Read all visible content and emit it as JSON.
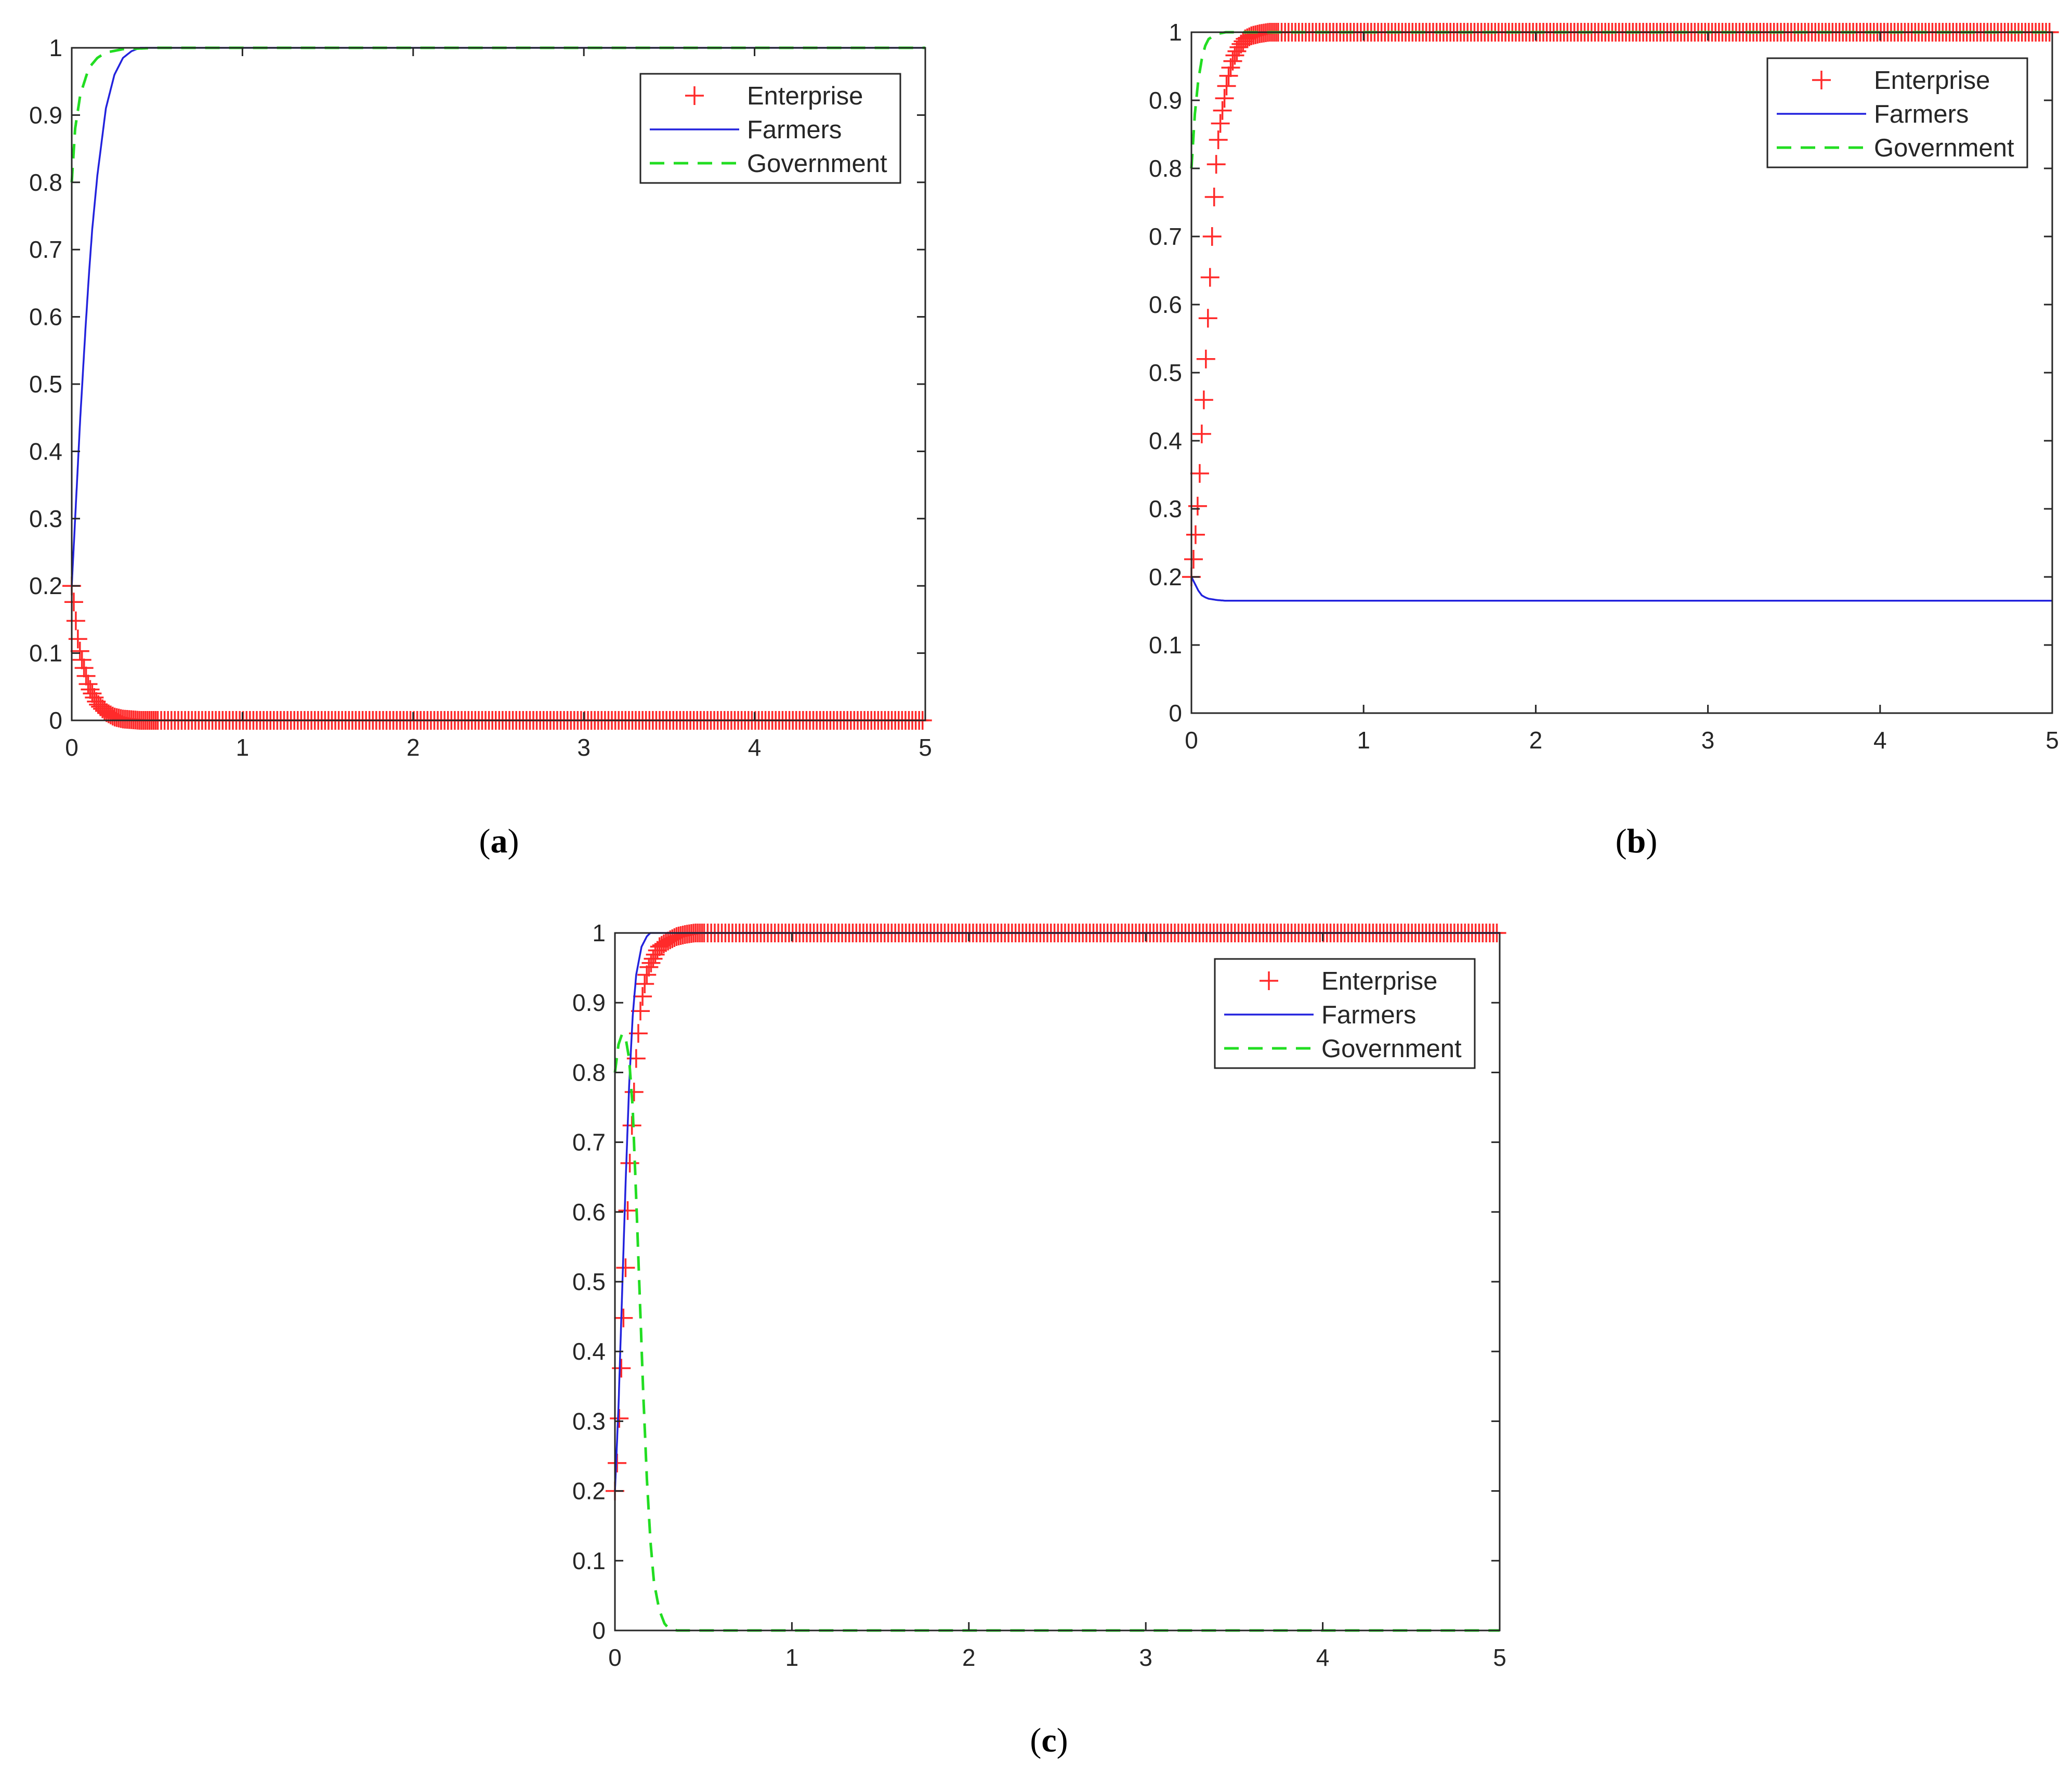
{
  "colors": {
    "enterprise": "#ff2a2a",
    "farmers": "#2222dd",
    "government": "#22dd22",
    "axis": "#262626"
  },
  "legend": {
    "enterprise": "Enterprise",
    "farmers": "Farmers",
    "government": "Government"
  },
  "panel_labels": [
    "a",
    "b",
    "c"
  ],
  "chart_data": [
    {
      "type": "line",
      "panel": "a",
      "xlim": [
        0,
        5
      ],
      "ylim": [
        0,
        1
      ],
      "xticks": [
        "0",
        "1",
        "2",
        "3",
        "4",
        "5"
      ],
      "yticks": [
        "0",
        "0.1",
        "0.2",
        "0.3",
        "0.4",
        "0.5",
        "0.6",
        "0.7",
        "0.8",
        "0.9",
        "1"
      ],
      "legend_position": "top-right",
      "grid": false,
      "series": [
        {
          "name": "Enterprise",
          "style": "markers-plus",
          "x": [
            0,
            0.01,
            0.02,
            0.03,
            0.05,
            0.08,
            0.1,
            0.12,
            0.15,
            0.2,
            0.25,
            0.3,
            0.4,
            0.5,
            1,
            2,
            3,
            4,
            5
          ],
          "y": [
            0.2,
            0.18,
            0.16,
            0.13,
            0.1,
            0.07,
            0.05,
            0.04,
            0.025,
            0.012,
            0.005,
            0.002,
            0.0,
            0.0,
            0.0,
            0.0,
            0.0,
            0.0,
            0.0
          ]
        },
        {
          "name": "Farmers",
          "style": "solid",
          "x": [
            0,
            0.02,
            0.05,
            0.08,
            0.1,
            0.12,
            0.15,
            0.2,
            0.25,
            0.3,
            0.35,
            0.4,
            0.5,
            1,
            2,
            3,
            4,
            5
          ],
          "y": [
            0.2,
            0.3,
            0.45,
            0.58,
            0.66,
            0.73,
            0.81,
            0.91,
            0.96,
            0.985,
            0.995,
            1.0,
            1.0,
            1.0,
            1.0,
            1.0,
            1.0,
            1.0
          ]
        },
        {
          "name": "Government",
          "style": "dashed",
          "x": [
            0,
            0.02,
            0.05,
            0.1,
            0.15,
            0.2,
            0.3,
            0.5,
            1,
            2,
            3,
            4,
            5
          ],
          "y": [
            0.8,
            0.88,
            0.93,
            0.97,
            0.985,
            0.993,
            0.998,
            1.0,
            1.0,
            1.0,
            1.0,
            1.0,
            1.0
          ]
        }
      ]
    },
    {
      "type": "line",
      "panel": "b",
      "xlim": [
        0,
        5
      ],
      "ylim": [
        0,
        1
      ],
      "xticks": [
        "0",
        "1",
        "2",
        "3",
        "4",
        "5"
      ],
      "yticks": [
        "0",
        "0.1",
        "0.2",
        "0.3",
        "0.4",
        "0.5",
        "0.6",
        "0.7",
        "0.8",
        "0.9",
        "1"
      ],
      "legend_position": "top-right",
      "grid": false,
      "series": [
        {
          "name": "Enterprise",
          "style": "markers-plus",
          "x": [
            0,
            0.01,
            0.02,
            0.03,
            0.04,
            0.05,
            0.06,
            0.07,
            0.08,
            0.09,
            0.1,
            0.11,
            0.12,
            0.13,
            0.14,
            0.15,
            0.17,
            0.19,
            0.21,
            0.23,
            0.25,
            0.28,
            0.31,
            0.35,
            0.4,
            0.45,
            0.5,
            1,
            2,
            3,
            4,
            5
          ],
          "y": [
            0.2,
            0.22,
            0.25,
            0.28,
            0.32,
            0.36,
            0.41,
            0.45,
            0.5,
            0.55,
            0.6,
            0.65,
            0.7,
            0.75,
            0.79,
            0.83,
            0.87,
            0.9,
            0.93,
            0.95,
            0.965,
            0.98,
            0.99,
            0.995,
            0.998,
            1.0,
            1.0,
            1.0,
            1.0,
            1.0,
            1.0,
            1.0
          ]
        },
        {
          "name": "Farmers",
          "style": "solid",
          "x": [
            0,
            0.02,
            0.04,
            0.06,
            0.08,
            0.1,
            0.15,
            0.2,
            0.3,
            1,
            2,
            3,
            4,
            5
          ],
          "y": [
            0.2,
            0.19,
            0.18,
            0.173,
            0.17,
            0.168,
            0.166,
            0.165,
            0.165,
            0.165,
            0.165,
            0.165,
            0.165,
            0.165
          ]
        },
        {
          "name": "Government",
          "style": "dashed",
          "x": [
            0,
            0.02,
            0.04,
            0.06,
            0.08,
            0.1,
            0.13,
            0.16,
            0.2,
            0.3,
            1,
            2,
            3,
            4,
            5
          ],
          "y": [
            0.8,
            0.88,
            0.93,
            0.96,
            0.98,
            0.99,
            0.995,
            0.998,
            1.0,
            1.0,
            1.0,
            1.0,
            1.0,
            1.0,
            1.0
          ]
        }
      ]
    },
    {
      "type": "line",
      "panel": "c",
      "xlim": [
        0,
        5
      ],
      "ylim": [
        0,
        1
      ],
      "xticks": [
        "0",
        "1",
        "2",
        "3",
        "4",
        "5"
      ],
      "yticks": [
        "0",
        "0.1",
        "0.2",
        "0.3",
        "0.4",
        "0.5",
        "0.6",
        "0.7",
        "0.8",
        "0.9",
        "1"
      ],
      "legend_position": "top-right",
      "grid": false,
      "series": [
        {
          "name": "Enterprise",
          "style": "markers-plus",
          "x": [
            0,
            0.01,
            0.02,
            0.03,
            0.04,
            0.05,
            0.06,
            0.07,
            0.08,
            0.09,
            0.1,
            0.11,
            0.12,
            0.13,
            0.14,
            0.15,
            0.17,
            0.19,
            0.21,
            0.23,
            0.25,
            0.28,
            0.31,
            0.35,
            0.4,
            0.45,
            0.5,
            1,
            2,
            3,
            4,
            5
          ],
          "y": [
            0.2,
            0.23,
            0.28,
            0.34,
            0.4,
            0.46,
            0.52,
            0.59,
            0.65,
            0.7,
            0.74,
            0.78,
            0.82,
            0.85,
            0.88,
            0.9,
            0.93,
            0.95,
            0.96,
            0.97,
            0.98,
            0.985,
            0.99,
            0.995,
            0.998,
            1.0,
            1.0,
            1.0,
            1.0,
            1.0,
            1.0,
            1.0
          ]
        },
        {
          "name": "Farmers",
          "style": "solid",
          "x": [
            0,
            0.02,
            0.04,
            0.06,
            0.08,
            0.1,
            0.12,
            0.15,
            0.18,
            0.2,
            0.25,
            0.3,
            1,
            2,
            3,
            4,
            5
          ],
          "y": [
            0.2,
            0.32,
            0.48,
            0.64,
            0.78,
            0.88,
            0.94,
            0.98,
            0.995,
            1.0,
            1.0,
            1.0,
            1.0,
            1.0,
            1.0,
            1.0,
            1.0
          ]
        },
        {
          "name": "Government",
          "style": "dashed",
          "x": [
            0,
            0.02,
            0.04,
            0.06,
            0.08,
            0.1,
            0.12,
            0.14,
            0.16,
            0.18,
            0.2,
            0.22,
            0.25,
            0.28,
            0.3,
            0.35,
            0.4,
            1,
            2,
            3,
            4,
            5
          ],
          "y": [
            0.8,
            0.84,
            0.855,
            0.85,
            0.82,
            0.75,
            0.62,
            0.48,
            0.34,
            0.22,
            0.13,
            0.07,
            0.03,
            0.01,
            0.004,
            0.0,
            0.0,
            0.0,
            0.0,
            0.0,
            0.0,
            0.0
          ]
        }
      ]
    }
  ]
}
